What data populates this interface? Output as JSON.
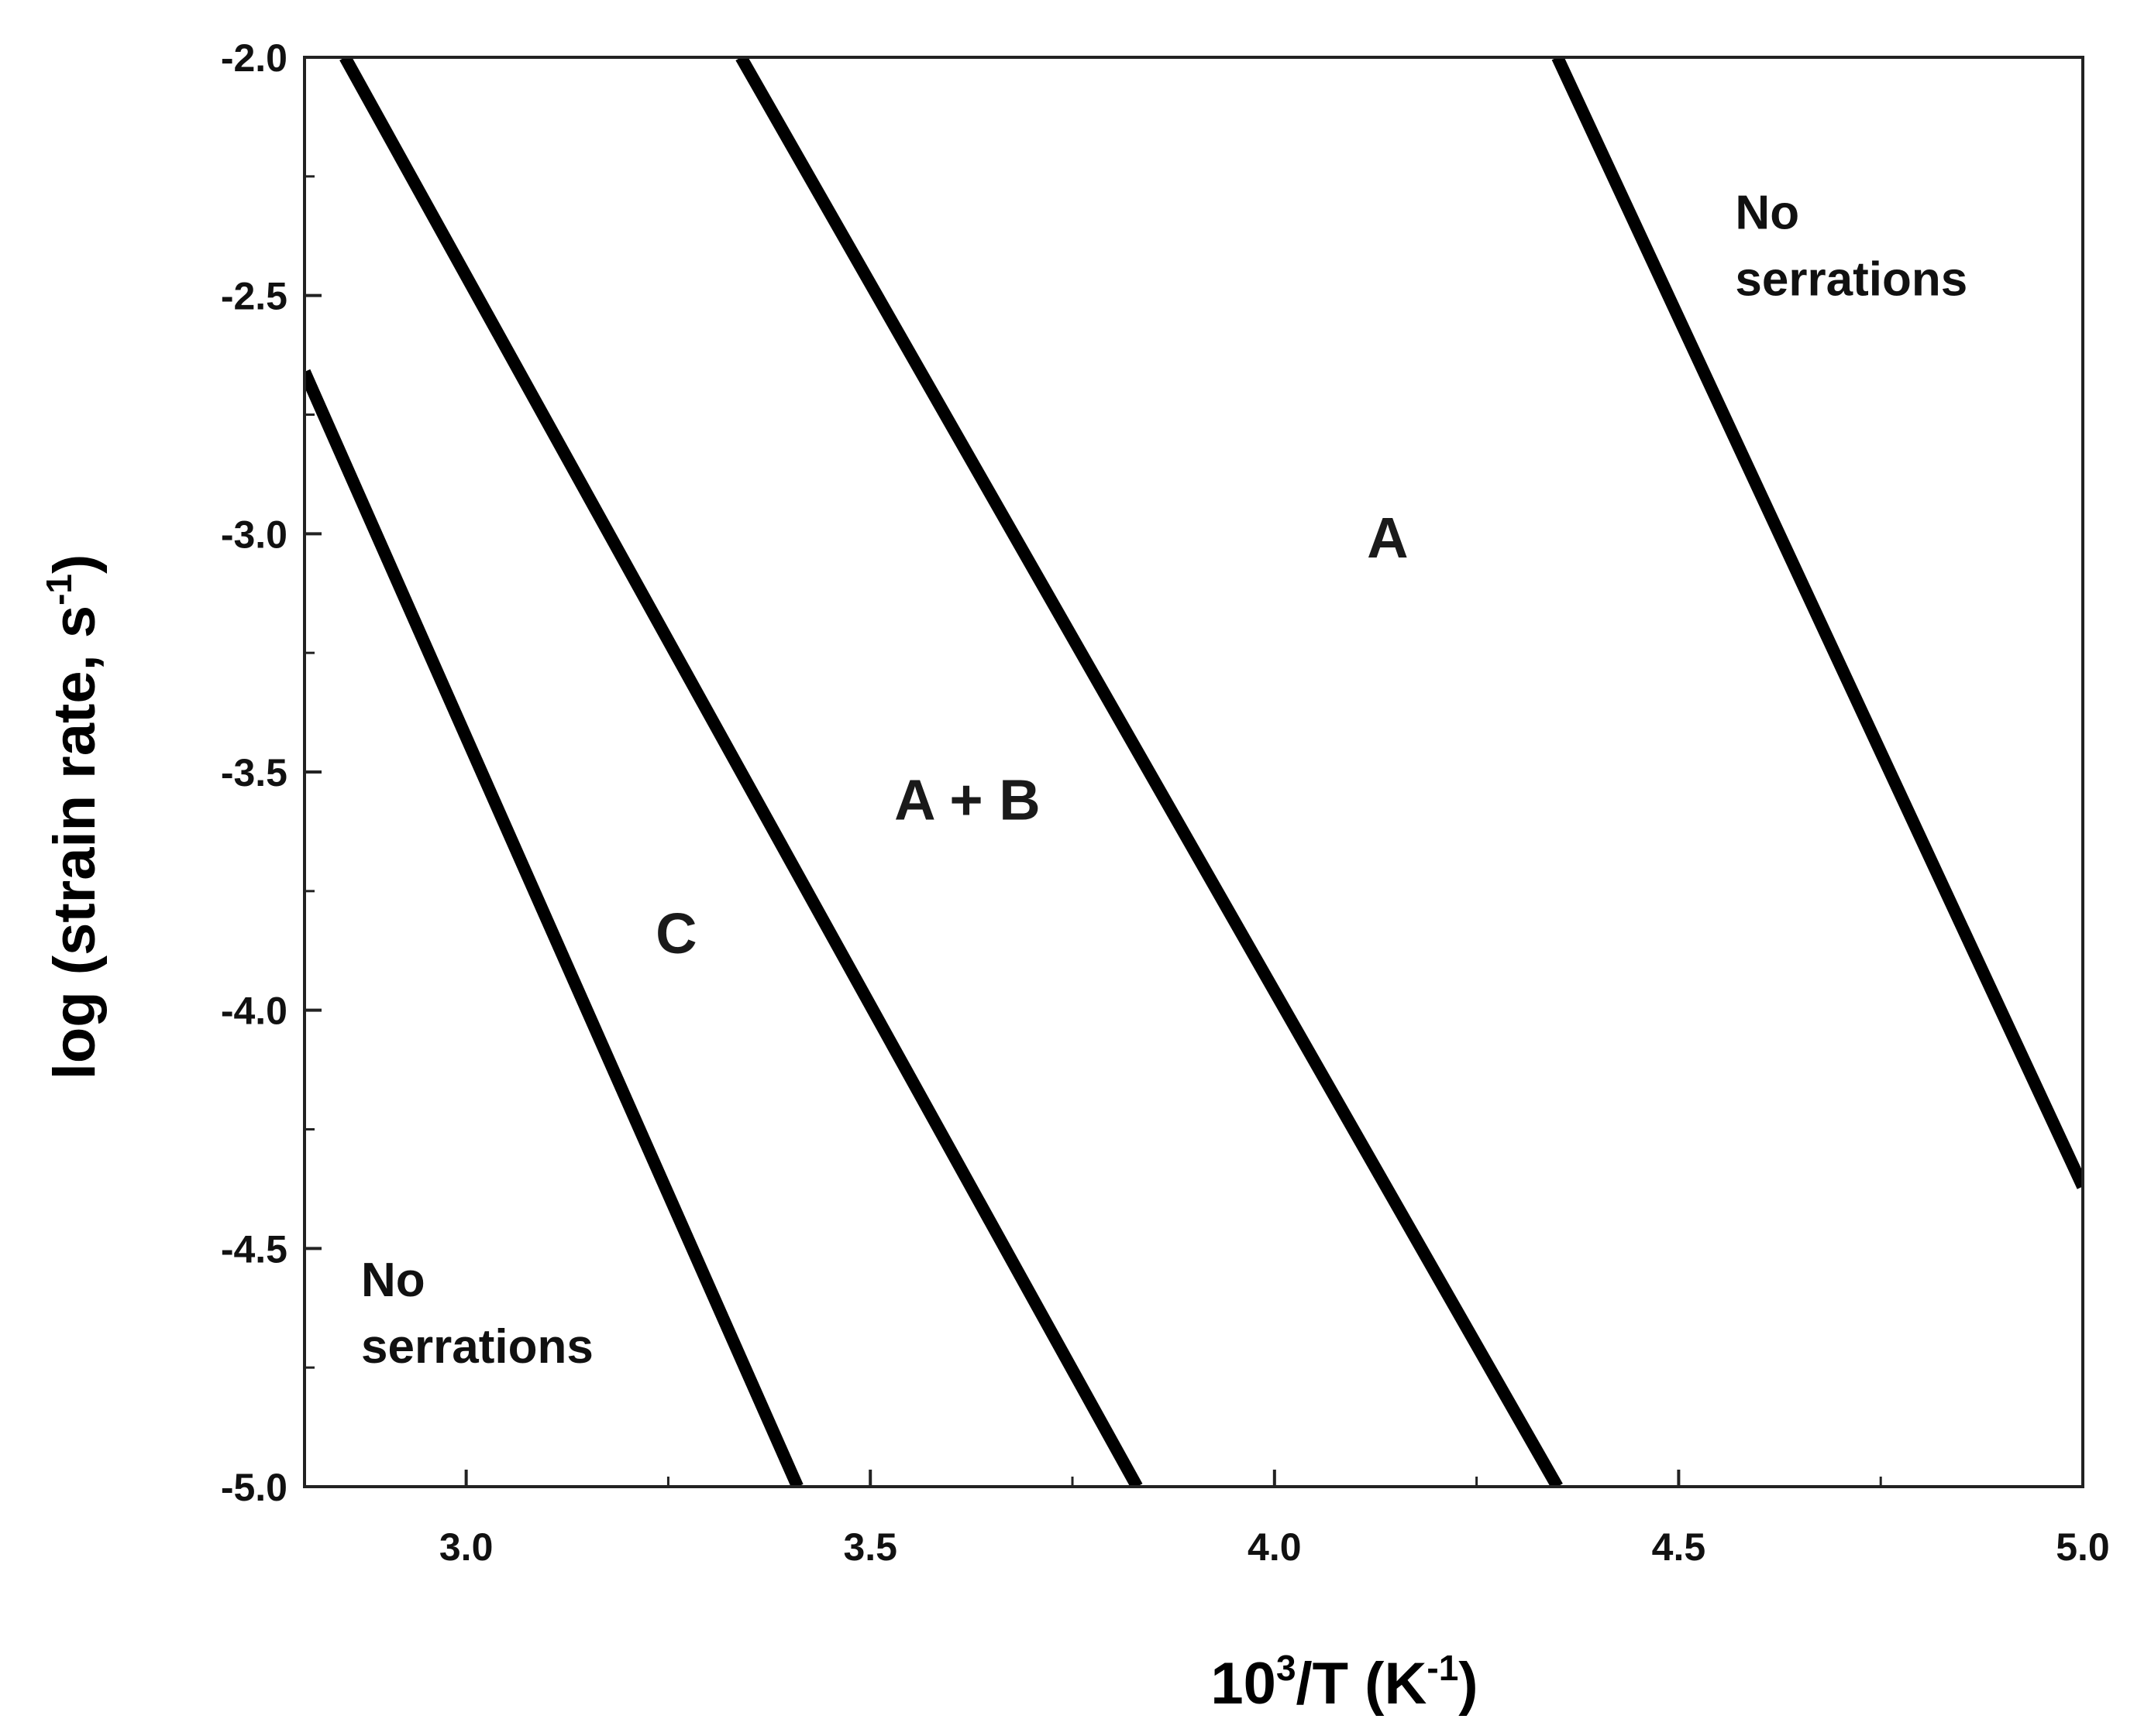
{
  "chart_data": {
    "type": "line",
    "title": "",
    "xlabel": {
      "base": "10",
      "sup": "3",
      "mid": "/T (K",
      "sup2": "-1",
      "end": ")"
    },
    "ylabel": {
      "main": "log (strain rate, s",
      "sup": "-1",
      "end": ")"
    },
    "xlim": [
      2.8,
      5.0
    ],
    "ylim": [
      -5.0,
      -2.0
    ],
    "xticks": [
      3.0,
      3.5,
      4.0,
      4.5,
      5.0
    ],
    "xtick_labels": [
      "3.0",
      "3.5",
      "4.0",
      "4.5",
      "5.0"
    ],
    "yticks": [
      -2.0,
      -2.5,
      -3.0,
      -3.5,
      -4.0,
      -4.5,
      -5.0
    ],
    "ytick_labels": [
      "-2.0",
      "-2.5",
      "-3.0",
      "-3.5",
      "-4.0",
      "-4.5",
      "-5.0"
    ],
    "grid": false,
    "series": [
      {
        "x": [
          2.8,
          3.41
        ],
        "y": [
          -2.66,
          -5.0
        ],
        "color": "#000000"
      },
      {
        "x": [
          2.85,
          3.83
        ],
        "y": [
          -2.0,
          -5.0
        ],
        "color": "#000000"
      },
      {
        "x": [
          3.34,
          4.35
        ],
        "y": [
          -2.0,
          -5.0
        ],
        "color": "#000000"
      },
      {
        "x": [
          4.35,
          5.0
        ],
        "y": [
          -2.0,
          -4.37
        ],
        "color": "#000000"
      }
    ],
    "annotations": [
      {
        "text": "A",
        "x": 4.14,
        "y": -3.05,
        "size": "large"
      },
      {
        "text": "A + B",
        "x": 3.62,
        "y": -3.6,
        "size": "large"
      },
      {
        "text": "C",
        "x": 3.26,
        "y": -3.88,
        "size": "large"
      },
      {
        "text": "No",
        "x": 4.57,
        "y": -2.36,
        "size": "small"
      },
      {
        "text": "serrations",
        "x": 4.57,
        "y": -2.5,
        "size": "small"
      },
      {
        "text": "No",
        "x": 2.87,
        "y": -4.6,
        "size": "small"
      },
      {
        "text": "serrations",
        "x": 2.87,
        "y": -4.74,
        "size": "small"
      }
    ]
  }
}
